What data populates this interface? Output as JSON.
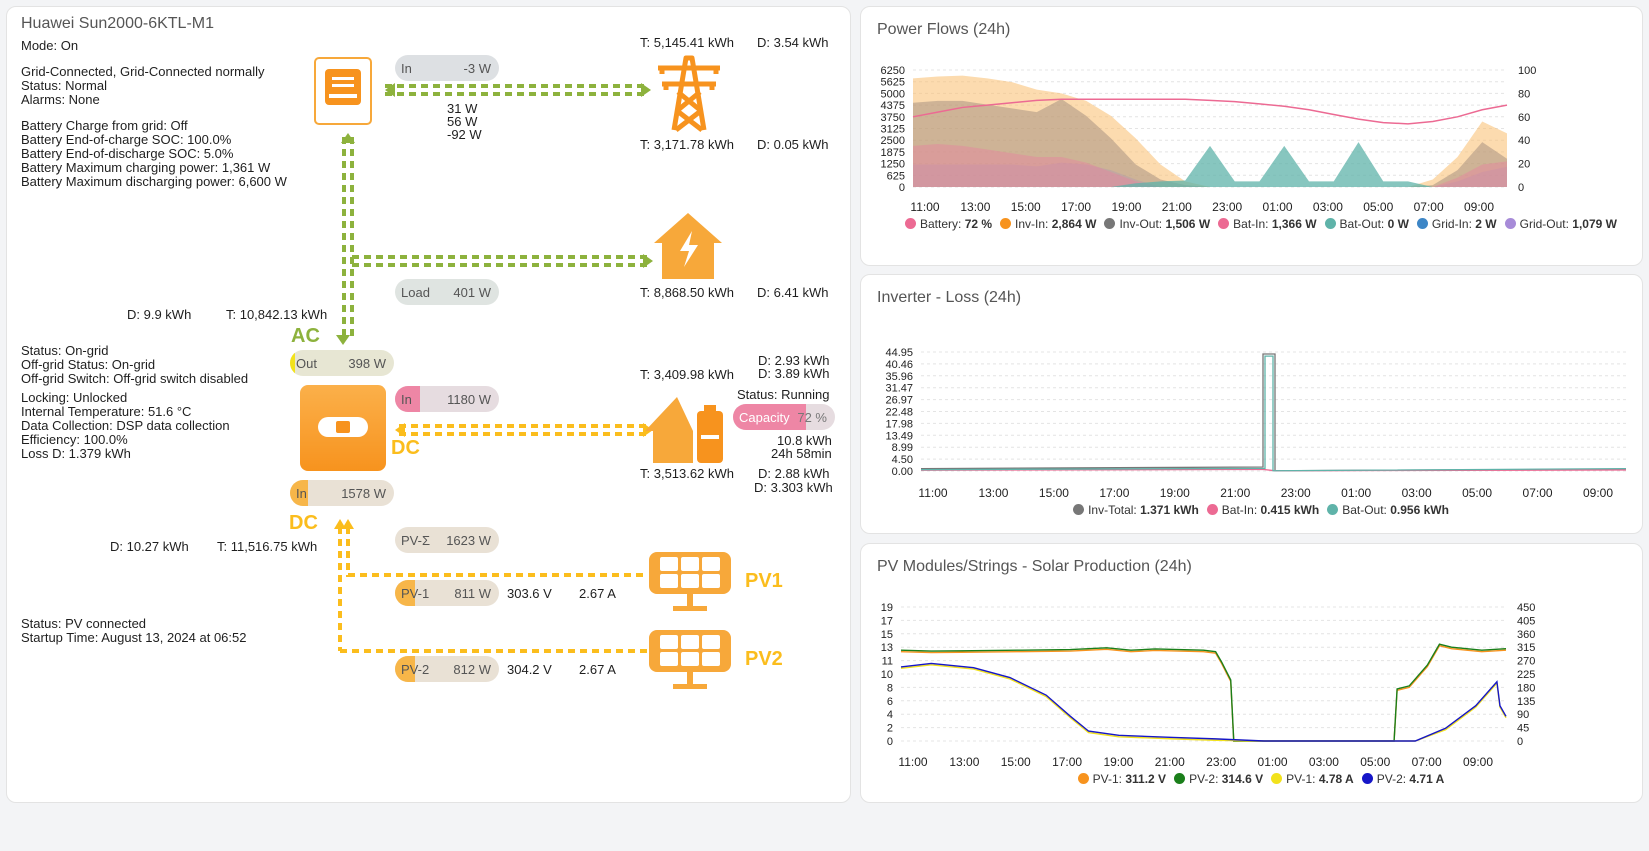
{
  "left": {
    "title": "Huawei Sun2000-6KTL-M1",
    "mode": "Mode: On",
    "info1": [
      "Grid-Connected, Grid-Connected normally",
      "Status: Normal",
      "Alarms: None"
    ],
    "info2": [
      "Battery Charge from grid: Off",
      "Battery End-of-charge SOC: 100.0%",
      "Battery End-of-discharge SOC: 5.0%",
      "Battery Maximum charging power: 1,361 W",
      "Battery Maximum discharging power: 6,600 W"
    ],
    "info3": [
      "Status: On-grid",
      "Off-grid Status: On-grid",
      "Off-grid Switch: Off-grid switch disabled"
    ],
    "info4": [
      "Locking: Unlocked",
      "Internal Temperature: 51.6 °C",
      "Data Collection: DSP data collection",
      "Efficiency: 100.0%",
      "Loss D: 1.379 kWh"
    ],
    "info5": [
      "Status: PV connected",
      "Startup Time: August 13, 2024 at 06:52"
    ],
    "grid": {
      "t_top": "T: 5,145.41 kWh",
      "d_top": "D: 3.54 kWh",
      "t_bot": "T: 3,171.78 kWh",
      "d_bot": "D: 0.05 kWh",
      "in_label": "In",
      "in_value": "-3 W",
      "phases": [
        "31 W",
        "56 W",
        "-92 W"
      ]
    },
    "house": {
      "t": "T: 8,868.50 kWh",
      "d": "D: 6.41 kWh",
      "load_label": "Load",
      "load_value": "401 W"
    },
    "ac": {
      "d": "D: 9.9 kWh",
      "t": "T: 10,842.13 kWh",
      "label": "AC",
      "out_label": "Out",
      "out_value": "398 W"
    },
    "battery": {
      "d1": "D: 2.93 kWh",
      "d2": "D: 3.89 kWh",
      "t_top": "T: 3,409.98 kWh",
      "status": "Status: Running",
      "in_label": "In",
      "in_value": "1180 W",
      "dc_label": "DC",
      "cap_label": "Capacity",
      "cap_value": "72 %",
      "cap_level": 0.72,
      "kwh": "10.8 kWh",
      "time": "24h 58min",
      "t_bot": "T: 3,513.62 kWh",
      "d3": "D: 2.88 kWh",
      "d4": "D: 3.303 kWh"
    },
    "dc": {
      "in_label": "In",
      "in_value": "1578 W",
      "label": "DC",
      "d": "D: 10.27 kWh",
      "t": "T: 11,516.75 kWh"
    },
    "pv": {
      "sum_label": "PV-Σ",
      "sum_value": "1623 W",
      "pv1_label": "PV-1",
      "pv1_value": "811 W",
      "pv1_v": "303.6 V",
      "pv1_a": "2.67 A",
      "pv1_name": "PV1",
      "pv2_label": "PV-2",
      "pv2_value": "812 W",
      "pv2_v": "304.2 V",
      "pv2_a": "2.67 A",
      "pv2_name": "PV2"
    }
  },
  "cards": {
    "power_flows": "Power Flows (24h)",
    "inverter_loss": "Inverter - Loss (24h)",
    "pv_modules": "PV Modules/Strings - Solar Production (24h)"
  },
  "chart_data": [
    {
      "type": "area",
      "title": "Power Flows (24h)",
      "x_ticks": [
        "11:00",
        "13:00",
        "15:00",
        "17:00",
        "19:00",
        "21:00",
        "23:00",
        "01:00",
        "03:00",
        "05:00",
        "07:00",
        "09:00"
      ],
      "y_ticks": [
        "0",
        "625",
        "1250",
        "1875",
        "2500",
        "3125",
        "3750",
        "4375",
        "5000",
        "5625",
        "6250"
      ],
      "y2_ticks": [
        "0",
        "20",
        "40",
        "60",
        "80",
        "100"
      ],
      "ylim": [
        0,
        6250
      ],
      "y2lim": [
        0,
        100
      ],
      "series": [
        {
          "name": "Battery",
          "value": "72 %",
          "color": "#ec6a93",
          "axis": "right",
          "values": [
            60,
            64,
            68,
            70,
            72,
            74,
            75,
            75,
            75,
            75,
            75,
            75,
            74,
            73,
            71,
            69,
            66,
            62,
            58,
            55,
            54,
            56,
            60,
            66,
            70
          ]
        },
        {
          "name": "Inv-In",
          "value": "2,864 W",
          "color": "#f7931e",
          "values": [
            5800,
            5900,
            5950,
            5800,
            5600,
            5200,
            5000,
            4600,
            3800,
            2600,
            1200,
            300,
            0,
            0,
            0,
            0,
            0,
            0,
            0,
            0,
            0,
            400,
            1600,
            3500,
            2864
          ]
        },
        {
          "name": "Inv-Out",
          "value": "1,506 W",
          "color": "#777777",
          "values": [
            4500,
            4600,
            4600,
            4400,
            4200,
            4000,
            4700,
            3800,
            2600,
            1200,
            400,
            100,
            0,
            0,
            0,
            0,
            0,
            0,
            0,
            0,
            0,
            100,
            900,
            2400,
            1506
          ]
        },
        {
          "name": "Bat-In",
          "value": "1,366 W",
          "color": "#ec6a93",
          "values": [
            2200,
            2300,
            2200,
            2000,
            1800,
            1600,
            1600,
            1300,
            800,
            300,
            0,
            0,
            0,
            0,
            0,
            0,
            0,
            0,
            0,
            0,
            0,
            0,
            500,
            1200,
            1366
          ]
        },
        {
          "name": "Bat-Out",
          "value": "0 W",
          "color": "#5fb3a9",
          "values": [
            0,
            0,
            0,
            0,
            0,
            0,
            0,
            0,
            0,
            200,
            300,
            350,
            2200,
            300,
            300,
            2200,
            300,
            300,
            2400,
            300,
            300,
            0,
            0,
            0,
            0
          ]
        },
        {
          "name": "Grid-In",
          "value": "2 W",
          "color": "#3d86c6",
          "values": [
            0,
            0,
            0,
            0,
            0,
            0,
            0,
            0,
            0,
            0,
            0,
            0,
            0,
            0,
            0,
            0,
            0,
            0,
            0,
            0,
            0,
            0,
            0,
            0,
            2
          ]
        },
        {
          "name": "Grid-Out",
          "value": "1,079 W",
          "color": "#a78bd8",
          "values": [
            1200,
            1200,
            1200,
            1200,
            1200,
            1100,
            1300,
            1200,
            900,
            400,
            0,
            0,
            0,
            0,
            0,
            0,
            0,
            0,
            0,
            0,
            0,
            0,
            300,
            800,
            1079
          ]
        }
      ]
    },
    {
      "type": "line",
      "title": "Inverter - Loss (24h)",
      "x_ticks": [
        "11:00",
        "13:00",
        "15:00",
        "17:00",
        "19:00",
        "21:00",
        "23:00",
        "01:00",
        "03:00",
        "05:00",
        "07:00",
        "09:00"
      ],
      "y_ticks": [
        "0.00",
        "4.50",
        "8.99",
        "13.49",
        "17.98",
        "22.48",
        "26.97",
        "31.47",
        "35.96",
        "40.46",
        "44.95"
      ],
      "ylim": [
        0,
        44.95
      ],
      "series": [
        {
          "name": "Inv-Total",
          "value": "1.371 kWh",
          "color": "#777777"
        },
        {
          "name": "Bat-In",
          "value": "0.415 kWh",
          "color": "#ec6a93"
        },
        {
          "name": "Bat-Out",
          "value": "0.956 kWh",
          "color": "#5fb3a9"
        }
      ]
    },
    {
      "type": "line",
      "title": "PV Modules/Strings - Solar Production (24h)",
      "x_ticks": [
        "11:00",
        "13:00",
        "15:00",
        "17:00",
        "19:00",
        "21:00",
        "23:00",
        "01:00",
        "03:00",
        "05:00",
        "07:00",
        "09:00"
      ],
      "y_ticks": [
        "0",
        "2",
        "4",
        "6",
        "8",
        "10",
        "11",
        "13",
        "15",
        "17",
        "19"
      ],
      "y2_ticks": [
        "0",
        "45",
        "90",
        "135",
        "180",
        "225",
        "270",
        "315",
        "360",
        "405",
        "450"
      ],
      "ylim": [
        0,
        19
      ],
      "y2lim": [
        0,
        450
      ],
      "series": [
        {
          "name": "PV-1",
          "value": "311.2 V",
          "color": "#f7931e"
        },
        {
          "name": "PV-2",
          "value": "314.6 V",
          "color": "#1a7f1a"
        },
        {
          "name": "PV-1",
          "value": "4.78 A",
          "color": "#f2e21c"
        },
        {
          "name": "PV-2",
          "value": "4.71 A",
          "color": "#1616c8"
        }
      ]
    }
  ]
}
